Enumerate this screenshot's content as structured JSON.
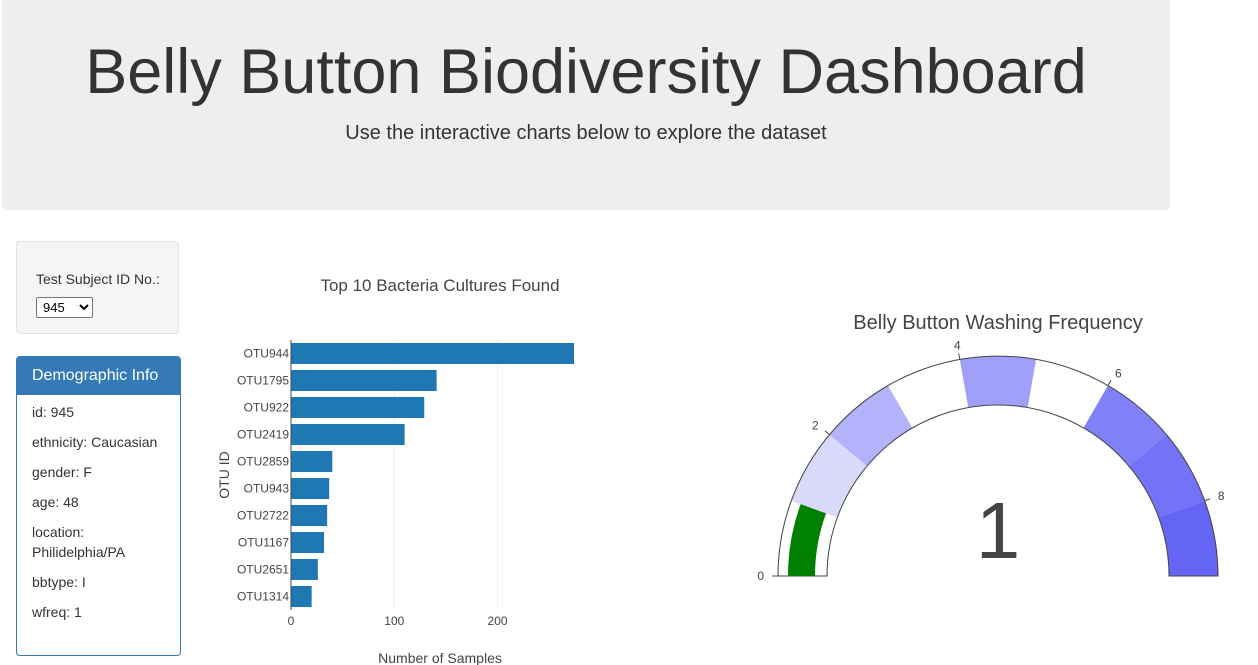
{
  "header": {
    "title": "Belly Button Biodiversity Dashboard",
    "subtitle": "Use the interactive charts below to explore the dataset"
  },
  "selector": {
    "label": "Test Subject ID No.:",
    "selected": "945"
  },
  "demographics": {
    "heading": "Demographic Info",
    "rows": [
      "id: 945",
      "ethnicity: Caucasian",
      "gender: F",
      "age: 48",
      "location: Philidelphia/PA",
      "bbtype: I",
      "wfreq: 1"
    ]
  },
  "colors": {
    "bar": "#1f77b4",
    "panel": "#337ab7",
    "needle_fill": "#008000"
  },
  "chart_data": [
    {
      "type": "bar",
      "orientation": "horizontal",
      "title": "Top 10 Bacteria Cultures Found",
      "xlabel": "Number of Samples",
      "ylabel": "OTU ID",
      "categories": [
        "OTU944",
        "OTU1795",
        "OTU922",
        "OTU2419",
        "OTU2859",
        "OTU943",
        "OTU2722",
        "OTU1167",
        "OTU2651",
        "OTU1314"
      ],
      "values": [
        274,
        141,
        129,
        110,
        40,
        37,
        35,
        32,
        26,
        20
      ],
      "xlim": [
        0,
        274
      ],
      "xticks": [
        0,
        100,
        200
      ],
      "grid": true
    },
    {
      "type": "gauge",
      "title": "Belly Button Washing Frequency",
      "value": 1,
      "range": [
        0,
        9
      ],
      "ticks": [
        "0",
        "2",
        "4",
        "6",
        "8"
      ],
      "steps": [
        {
          "from": 1,
          "to": 2,
          "color": "#d9d9fb"
        },
        {
          "from": 2,
          "to": 3,
          "color": "#b3b3fb"
        },
        {
          "from": 3,
          "to": 4,
          "color": "#ffffff"
        },
        {
          "from": 4,
          "to": 5,
          "color": "#a0a0fb"
        },
        {
          "from": 5,
          "to": 6,
          "color": "#ffffff"
        },
        {
          "from": 6,
          "to": 7,
          "color": "#8080f8"
        },
        {
          "from": 7,
          "to": 8,
          "color": "#7373f7"
        },
        {
          "from": 8,
          "to": 9,
          "color": "#6464f5"
        }
      ],
      "bar_color": "#008000"
    }
  ]
}
